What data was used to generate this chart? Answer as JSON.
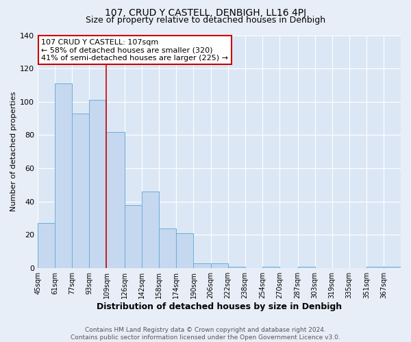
{
  "title": "107, CRUD Y CASTELL, DENBIGH, LL16 4PJ",
  "subtitle": "Size of property relative to detached houses in Denbigh",
  "xlabel": "Distribution of detached houses by size in Denbigh",
  "ylabel": "Number of detached properties",
  "footer_line1": "Contains HM Land Registry data © Crown copyright and database right 2024.",
  "footer_line2": "Contains public sector information licensed under the Open Government Licence v3.0.",
  "annotation_title": "107 CRUD Y CASTELL: 107sqm",
  "annotation_line2": "← 58% of detached houses are smaller (320)",
  "annotation_line3": "41% of semi-detached houses are larger (225) →",
  "bin_edges": [
    45,
    61,
    77,
    93,
    109,
    126,
    142,
    158,
    174,
    190,
    206,
    222,
    238,
    254,
    270,
    287,
    303,
    319,
    335,
    351,
    367,
    383
  ],
  "tick_labels": [
    "45sqm",
    "61sqm",
    "77sqm",
    "93sqm",
    "109sqm",
    "126sqm",
    "142sqm",
    "158sqm",
    "174sqm",
    "190sqm",
    "206sqm",
    "222sqm",
    "238sqm",
    "254sqm",
    "270sqm",
    "287sqm",
    "303sqm",
    "319sqm",
    "335sqm",
    "351sqm",
    "367sqm"
  ],
  "bar_heights": [
    27,
    111,
    93,
    101,
    82,
    38,
    46,
    24,
    21,
    3,
    3,
    1,
    0,
    1,
    0,
    1,
    0,
    0,
    0,
    1,
    1
  ],
  "bar_color": "#c5d8f0",
  "bar_edge_color": "#6aaed6",
  "red_line_x": 109,
  "ylim": [
    0,
    140
  ],
  "yticks": [
    0,
    20,
    40,
    60,
    80,
    100,
    120,
    140
  ],
  "background_color": "#e8eef7",
  "plot_bg_color": "#dce7f5",
  "grid_color": "#ffffff",
  "annotation_box_color": "#ffffff",
  "annotation_box_edge": "#cc0000",
  "title_fontsize": 10,
  "subtitle_fontsize": 9,
  "xlabel_fontsize": 9,
  "ylabel_fontsize": 8,
  "tick_fontsize": 7,
  "footer_fontsize": 6.5,
  "annotation_fontsize": 8
}
